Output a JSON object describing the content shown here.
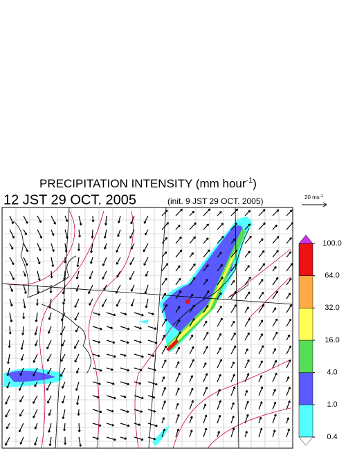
{
  "header": {
    "title": "PRECIPITATION INTENSITY (mm hour",
    "title_sup": "-1",
    "title_end": ")",
    "time": "12 JST 29 OCT. 2005",
    "init": "(init. 9 JST 29 OCT. 2005)",
    "scale_label": "20 ms",
    "scale_sup": "-1"
  },
  "colorbar": {
    "levels": [
      {
        "value": 0.4,
        "label": "0.4"
      },
      {
        "value": 1,
        "label": "1.0"
      },
      {
        "value": 4,
        "label": "4.0"
      },
      {
        "value": 16,
        "label": "16.0"
      },
      {
        "value": 32,
        "label": "32.0"
      },
      {
        "value": 64,
        "label": "64.0"
      },
      {
        "value": 100,
        "label": "100.0"
      }
    ],
    "colors": [
      "#55ffff",
      "#5a5aff",
      "#55dd55",
      "#ffff55",
      "#ffaa44",
      "#ee1111"
    ],
    "over_color": "#cc33ee",
    "under_color": "#ffffff"
  }
}
